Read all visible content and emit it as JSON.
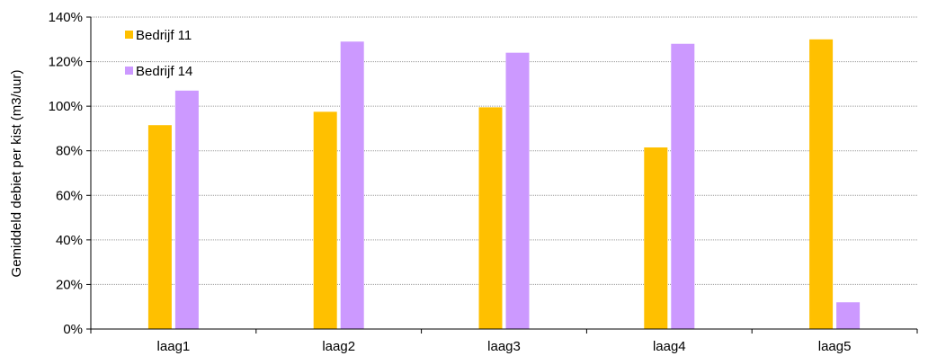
{
  "chart_data": {
    "type": "bar",
    "ylabel": "Gemiddeld debiet per kist (m3/uur)",
    "xlabel": "",
    "categories": [
      "laag1",
      "laag2",
      "laag3",
      "laag4",
      "laag5"
    ],
    "ylim": [
      0,
      140
    ],
    "yticks": [
      0,
      20,
      40,
      60,
      80,
      100,
      120,
      140
    ],
    "ytick_labels": [
      "0%",
      "20%",
      "40%",
      "60%",
      "80%",
      "100%",
      "120%",
      "140%"
    ],
    "grid": true,
    "legend_position": "top-left",
    "series": [
      {
        "name": "Bedrijf 11",
        "color": "#FFC000",
        "values": [
          91.5,
          97.5,
          99.5,
          81.5,
          130
        ]
      },
      {
        "name": "Bedrijf 14",
        "color": "#CC99FF",
        "values": [
          107,
          129,
          124,
          128,
          12
        ]
      }
    ]
  }
}
